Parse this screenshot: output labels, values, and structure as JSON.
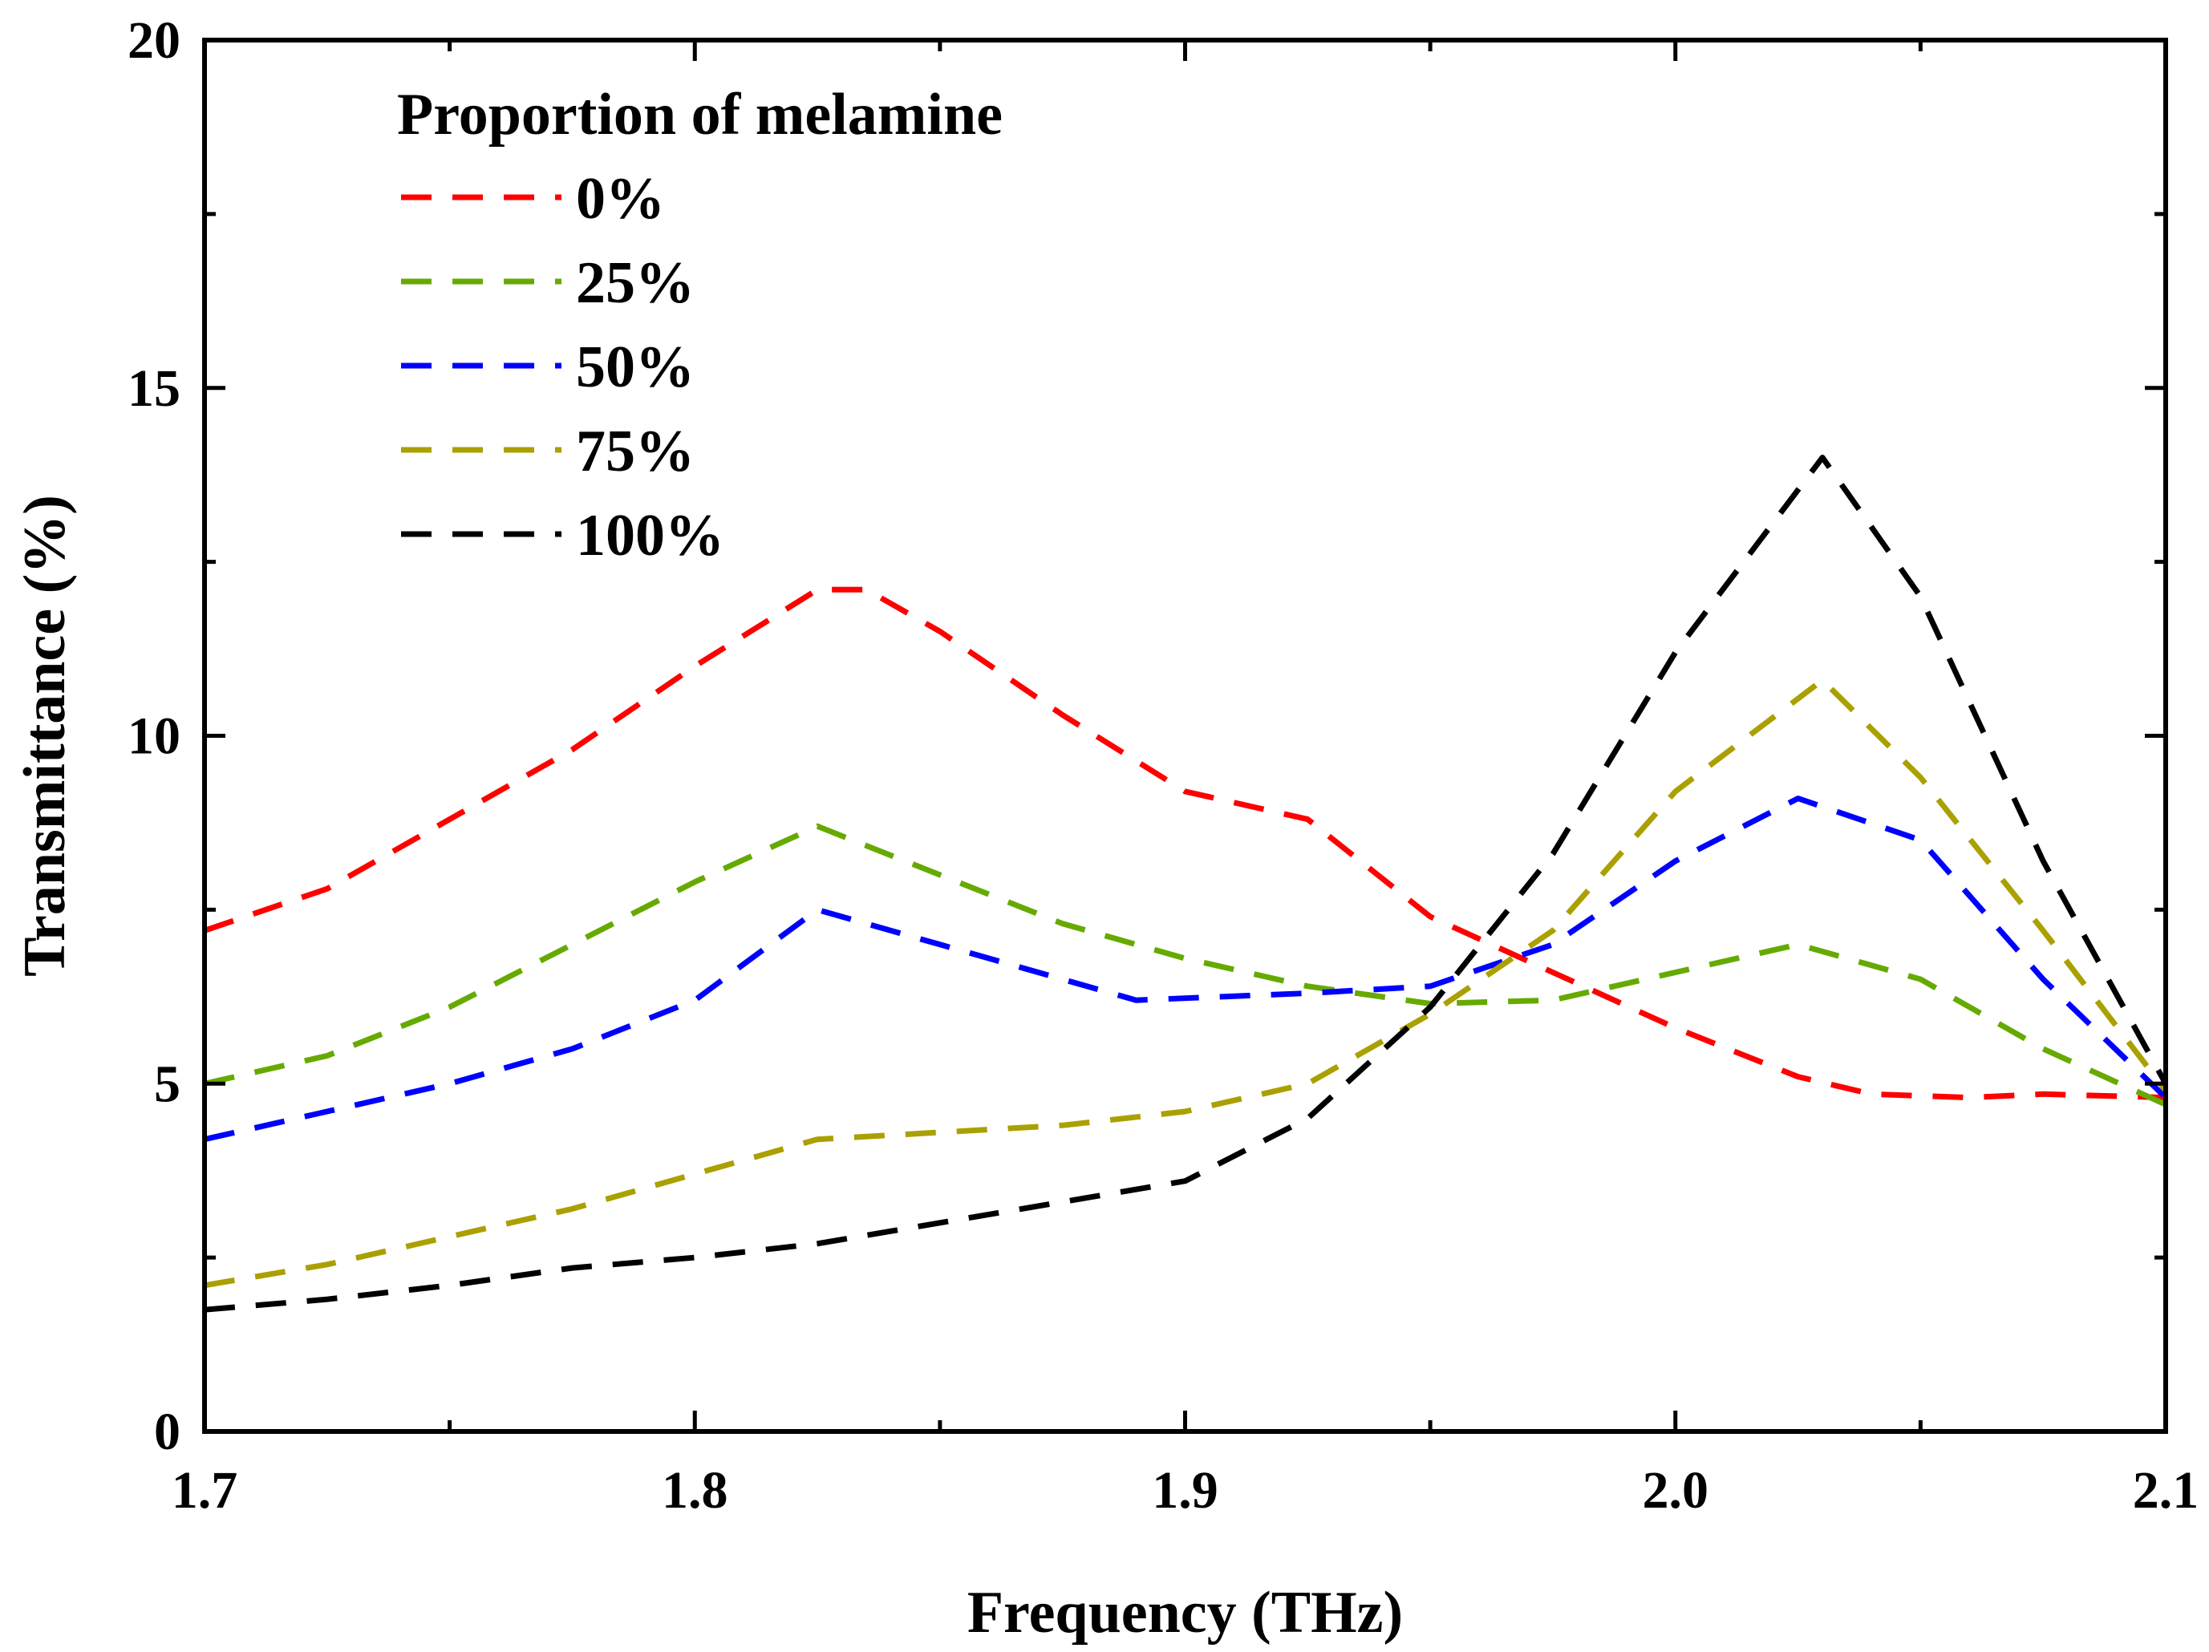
{
  "chart_data": {
    "type": "line",
    "title": "",
    "xlabel": "Frequency (THz)",
    "ylabel": "Transmittance (%)",
    "xlim": [
      1.7,
      2.1
    ],
    "ylim": [
      0,
      20
    ],
    "x_ticks": [
      1.7,
      1.8,
      1.9,
      2.0,
      2.1
    ],
    "x_tick_labels": [
      "1.7",
      "1.8",
      "1.9",
      "2.0",
      "2.1"
    ],
    "y_ticks": [
      0,
      5,
      10,
      15,
      20
    ],
    "y_tick_labels": [
      "0",
      "5",
      "10",
      "15",
      "20"
    ],
    "legend": {
      "title": "Proportion of melamine",
      "position": "top-left"
    },
    "line_style": "dashed",
    "series": [
      {
        "name": "0%",
        "color": "#ff0000",
        "x": [
          1.7,
          1.725,
          1.75,
          1.775,
          1.8,
          1.825,
          1.835,
          1.85,
          1.875,
          1.9,
          1.925,
          1.95,
          1.975,
          2.0,
          2.025,
          2.04,
          2.06,
          2.075,
          2.1
        ],
        "y": [
          7.2,
          7.8,
          8.8,
          9.8,
          11.0,
          12.1,
          12.1,
          11.5,
          10.3,
          9.2,
          8.8,
          7.4,
          6.6,
          5.8,
          5.1,
          4.85,
          4.8,
          4.85,
          4.8
        ]
      },
      {
        "name": "25%",
        "color": "#66aa00",
        "x": [
          1.7,
          1.725,
          1.75,
          1.775,
          1.8,
          1.825,
          1.85,
          1.875,
          1.9,
          1.925,
          1.95,
          1.975,
          2.0,
          2.025,
          2.05,
          2.075,
          2.1
        ],
        "y": [
          5.0,
          5.4,
          6.1,
          7.0,
          7.9,
          8.7,
          8.0,
          7.3,
          6.8,
          6.4,
          6.15,
          6.2,
          6.6,
          7.0,
          6.5,
          5.5,
          4.7
        ]
      },
      {
        "name": "50%",
        "color": "#0000ff",
        "x": [
          1.7,
          1.725,
          1.75,
          1.775,
          1.8,
          1.825,
          1.85,
          1.875,
          1.89,
          1.925,
          1.95,
          1.975,
          2.0,
          2.025,
          2.05,
          2.075,
          2.1
        ],
        "y": [
          4.2,
          4.6,
          5.0,
          5.5,
          6.2,
          7.5,
          7.0,
          6.5,
          6.2,
          6.3,
          6.4,
          7.0,
          8.2,
          9.1,
          8.5,
          6.5,
          4.8
        ]
      },
      {
        "name": "75%",
        "color": "#aaa000",
        "x": [
          1.7,
          1.725,
          1.75,
          1.775,
          1.8,
          1.825,
          1.85,
          1.875,
          1.9,
          1.925,
          1.95,
          1.975,
          2.0,
          2.03,
          2.05,
          2.075,
          2.1
        ],
        "y": [
          2.1,
          2.4,
          2.8,
          3.2,
          3.7,
          4.2,
          4.3,
          4.4,
          4.6,
          5.0,
          6.0,
          7.2,
          9.2,
          10.8,
          9.4,
          7.2,
          4.9
        ]
      },
      {
        "name": "100%",
        "color": "#000000",
        "x": [
          1.7,
          1.725,
          1.75,
          1.775,
          1.8,
          1.825,
          1.85,
          1.875,
          1.9,
          1.925,
          1.95,
          1.975,
          2.0,
          2.03,
          2.05,
          2.075,
          2.1
        ],
        "y": [
          1.75,
          1.9,
          2.1,
          2.35,
          2.5,
          2.7,
          3.0,
          3.3,
          3.6,
          4.5,
          6.1,
          8.3,
          11.2,
          14.0,
          12.0,
          8.2,
          5.0
        ]
      }
    ]
  }
}
